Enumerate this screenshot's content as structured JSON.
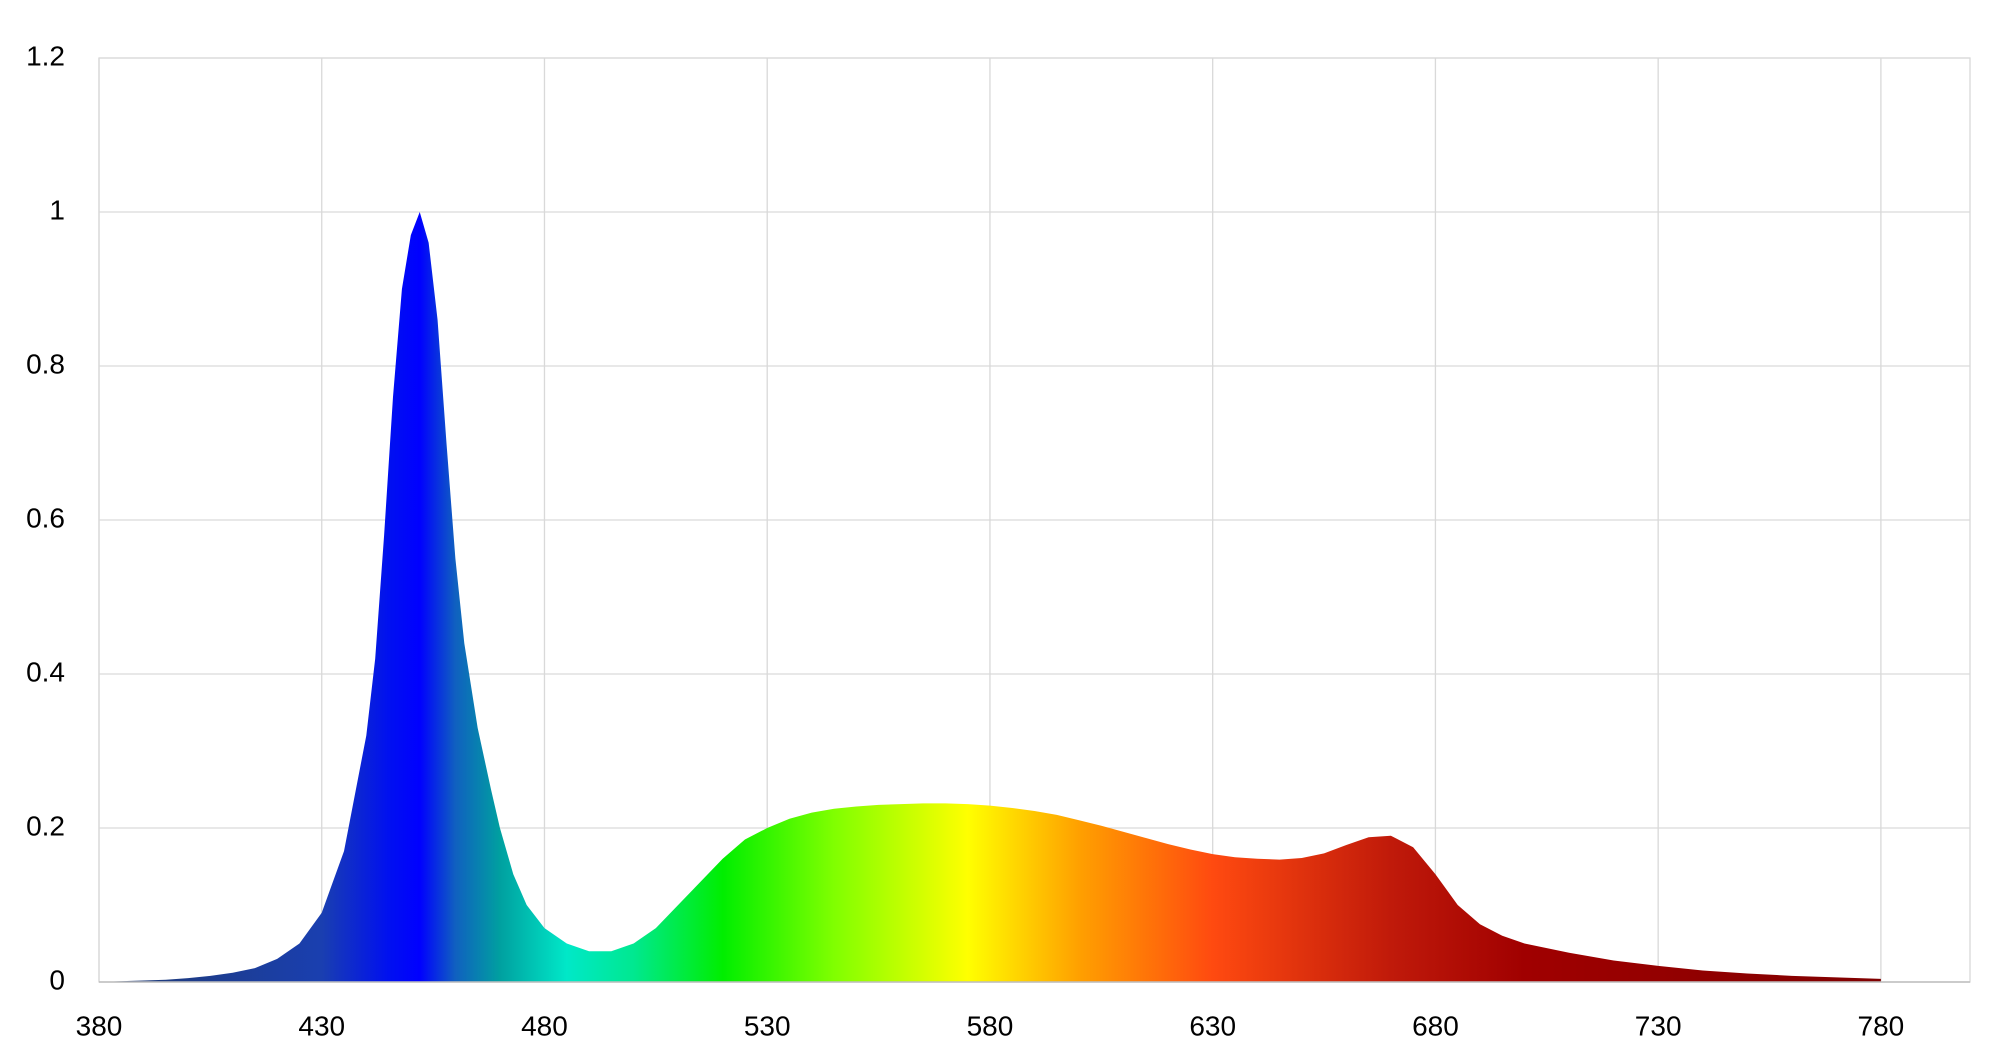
{
  "chart_data": {
    "type": "area",
    "x": [
      380,
      385,
      390,
      395,
      400,
      405,
      410,
      415,
      420,
      425,
      430,
      435,
      440,
      442,
      444,
      446,
      448,
      450,
      452,
      454,
      456,
      458,
      460,
      462,
      465,
      468,
      470,
      473,
      476,
      480,
      485,
      490,
      495,
      500,
      505,
      510,
      515,
      520,
      525,
      530,
      535,
      540,
      545,
      550,
      555,
      560,
      565,
      570,
      575,
      580,
      585,
      590,
      595,
      600,
      605,
      610,
      615,
      620,
      625,
      630,
      635,
      640,
      645,
      650,
      655,
      660,
      665,
      670,
      675,
      680,
      685,
      690,
      695,
      700,
      710,
      720,
      730,
      740,
      750,
      760,
      770,
      780
    ],
    "values": [
      0,
      0.001,
      0.002,
      0.003,
      0.005,
      0.008,
      0.012,
      0.018,
      0.03,
      0.05,
      0.09,
      0.17,
      0.32,
      0.42,
      0.58,
      0.76,
      0.9,
      0.97,
      1.0,
      0.96,
      0.86,
      0.7,
      0.55,
      0.44,
      0.33,
      0.25,
      0.2,
      0.14,
      0.1,
      0.07,
      0.05,
      0.04,
      0.04,
      0.05,
      0.07,
      0.1,
      0.13,
      0.16,
      0.185,
      0.2,
      0.212,
      0.22,
      0.225,
      0.228,
      0.23,
      0.231,
      0.232,
      0.232,
      0.231,
      0.229,
      0.226,
      0.222,
      0.217,
      0.21,
      0.203,
      0.195,
      0.187,
      0.179,
      0.172,
      0.166,
      0.162,
      0.16,
      0.159,
      0.161,
      0.167,
      0.178,
      0.188,
      0.19,
      0.175,
      0.14,
      0.1,
      0.075,
      0.06,
      0.05,
      0.038,
      0.028,
      0.021,
      0.015,
      0.011,
      0.008,
      0.006,
      0.004
    ],
    "gradient": [
      {
        "x": 380,
        "color": "#1f3a6e"
      },
      {
        "x": 430,
        "color": "#1a3fb0"
      },
      {
        "x": 445,
        "color": "#0010f0"
      },
      {
        "x": 452,
        "color": "#0000ff"
      },
      {
        "x": 460,
        "color": "#1060c0"
      },
      {
        "x": 470,
        "color": "#00a0a0"
      },
      {
        "x": 485,
        "color": "#00e8c8"
      },
      {
        "x": 500,
        "color": "#00e890"
      },
      {
        "x": 520,
        "color": "#00ee00"
      },
      {
        "x": 545,
        "color": "#80ff00"
      },
      {
        "x": 575,
        "color": "#ffff00"
      },
      {
        "x": 600,
        "color": "#ffa000"
      },
      {
        "x": 630,
        "color": "#ff4a10"
      },
      {
        "x": 670,
        "color": "#c01a0a"
      },
      {
        "x": 700,
        "color": "#a00000"
      },
      {
        "x": 780,
        "color": "#800000"
      }
    ],
    "xlim": [
      380,
      800
    ],
    "xticks": [
      380,
      430,
      480,
      530,
      580,
      630,
      680,
      730,
      780
    ],
    "ylim": [
      0,
      1.2
    ],
    "yticks": [
      0,
      0.2,
      0.4,
      0.6,
      0.8,
      1,
      1.2
    ],
    "grid": true
  }
}
